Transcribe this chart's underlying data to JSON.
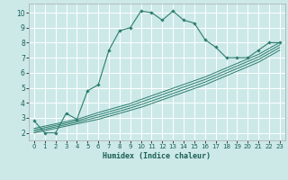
{
  "xlabel": "Humidex (Indice chaleur)",
  "bg_color": "#cce9e8",
  "grid_color": "#ffffff",
  "line_color": "#2d7d6e",
  "xlim": [
    -0.5,
    23.5
  ],
  "ylim": [
    1.5,
    10.6
  ],
  "xticks": [
    0,
    1,
    2,
    3,
    4,
    5,
    6,
    7,
    8,
    9,
    10,
    11,
    12,
    13,
    14,
    15,
    16,
    17,
    18,
    19,
    20,
    21,
    22,
    23
  ],
  "yticks": [
    2,
    3,
    4,
    5,
    6,
    7,
    8,
    9,
    10
  ],
  "main_x": [
    0,
    1,
    2,
    3,
    4,
    5,
    6,
    7,
    8,
    9,
    10,
    11,
    12,
    13,
    14,
    15,
    16,
    17,
    18,
    19,
    20,
    21,
    22,
    23
  ],
  "main_y": [
    2.8,
    2.0,
    2.0,
    3.3,
    2.9,
    4.8,
    5.2,
    7.5,
    8.8,
    9.0,
    10.1,
    10.0,
    9.5,
    10.1,
    9.5,
    9.3,
    8.2,
    7.7,
    7.0,
    7.0,
    7.0,
    7.5,
    8.0,
    8.0
  ],
  "linear_lines_y": [
    [
      2.0,
      2.15,
      2.3,
      2.45,
      2.6,
      2.75,
      2.9,
      3.1,
      3.3,
      3.5,
      3.7,
      3.95,
      4.2,
      4.45,
      4.7,
      4.95,
      5.2,
      5.5,
      5.8,
      6.1,
      6.4,
      6.7,
      7.1,
      7.5
    ],
    [
      2.1,
      2.25,
      2.4,
      2.55,
      2.7,
      2.88,
      3.05,
      3.25,
      3.45,
      3.65,
      3.88,
      4.12,
      4.37,
      4.62,
      4.87,
      5.12,
      5.38,
      5.68,
      5.98,
      6.28,
      6.58,
      6.88,
      7.28,
      7.68
    ],
    [
      2.2,
      2.35,
      2.5,
      2.65,
      2.8,
      3.0,
      3.2,
      3.4,
      3.6,
      3.8,
      4.05,
      4.3,
      4.55,
      4.8,
      5.05,
      5.3,
      5.55,
      5.85,
      6.15,
      6.45,
      6.75,
      7.05,
      7.45,
      7.85
    ],
    [
      2.3,
      2.45,
      2.6,
      2.75,
      2.9,
      3.12,
      3.35,
      3.55,
      3.75,
      3.95,
      4.22,
      4.47,
      4.72,
      4.97,
      5.22,
      5.47,
      5.72,
      6.02,
      6.32,
      6.62,
      6.92,
      7.22,
      7.62,
      8.02
    ]
  ]
}
